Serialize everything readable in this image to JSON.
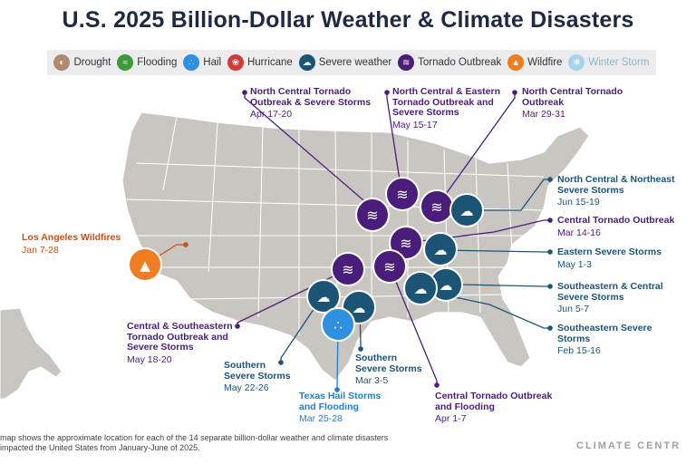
{
  "title": "U.S. 2025 Billion-Dollar Weather & Climate Disasters",
  "legend": [
    {
      "label": "Drought",
      "color": "#b08a6e",
      "icon": "drought-icon"
    },
    {
      "label": "Flooding",
      "color": "#3c9a3c",
      "icon": "flooding-icon"
    },
    {
      "label": "Hail",
      "color": "#2f8fe0",
      "icon": "hail-icon"
    },
    {
      "label": "Hurricane",
      "color": "#d33a3a",
      "icon": "hurricane-icon"
    },
    {
      "label": "Severe weather",
      "color": "#1c5476",
      "icon": "severe-weather-icon"
    },
    {
      "label": "Tornado Outbreak",
      "color": "#4a1d7a",
      "icon": "tornado-icon"
    },
    {
      "label": "Wildfire",
      "color": "#ef7d22",
      "icon": "wildfire-icon"
    },
    {
      "label": "Winter Storm",
      "color": "#a6d4ea",
      "icon": "winter-storm-icon"
    }
  ],
  "events": [
    {
      "name": "North Central Tornado Outbreak & Severe Storms",
      "dates": "Apr 17-20",
      "type": "tornado"
    },
    {
      "name": "North Central & Eastern Tornado Outbreak and Severe Storms",
      "dates": "May 15-17",
      "type": "tornado"
    },
    {
      "name": "North Central Tornado Outbreak",
      "dates": "Mar 29-31",
      "type": "tornado"
    },
    {
      "name": "North Central & Northeast Severe Storms",
      "dates": "Jun 15-19",
      "type": "severe"
    },
    {
      "name": "Central Tornado Outbreak",
      "dates": "Mar 14-16",
      "type": "tornado"
    },
    {
      "name": "Eastern Severe Storms",
      "dates": "May 1-3",
      "type": "severe"
    },
    {
      "name": "Southeastern & Central Severe Storms",
      "dates": "Jun 5-7",
      "type": "severe"
    },
    {
      "name": "Southeastern Severe Storms",
      "dates": "Feb 15-16",
      "type": "severe"
    },
    {
      "name": "Los Angeles Wildfires",
      "dates": "Jan 7-28",
      "type": "wildfire"
    },
    {
      "name": "Central & Southeastern Tornado Outbreak and Severe Storms",
      "dates": "May 18-20",
      "type": "tornado"
    },
    {
      "name": "Southern Severe Storms",
      "dates": "May 22-26",
      "type": "severe"
    },
    {
      "name": "Southern Severe Storms",
      "dates": "Mar 3-5",
      "type": "severe"
    },
    {
      "name": "Texas Hail Storms and Flooding",
      "dates": "Mar 25-28",
      "type": "hail"
    },
    {
      "name": "Central Tornado Outbreak and Flooding",
      "dates": "Apr 1-7",
      "type": "tornado"
    }
  ],
  "footer": "map shows the approximate location for each of the 14 separate billion-dollar weather and climate disasters impacted the United States from January-June of 2025.",
  "brand": "CLIMATE CENTR"
}
